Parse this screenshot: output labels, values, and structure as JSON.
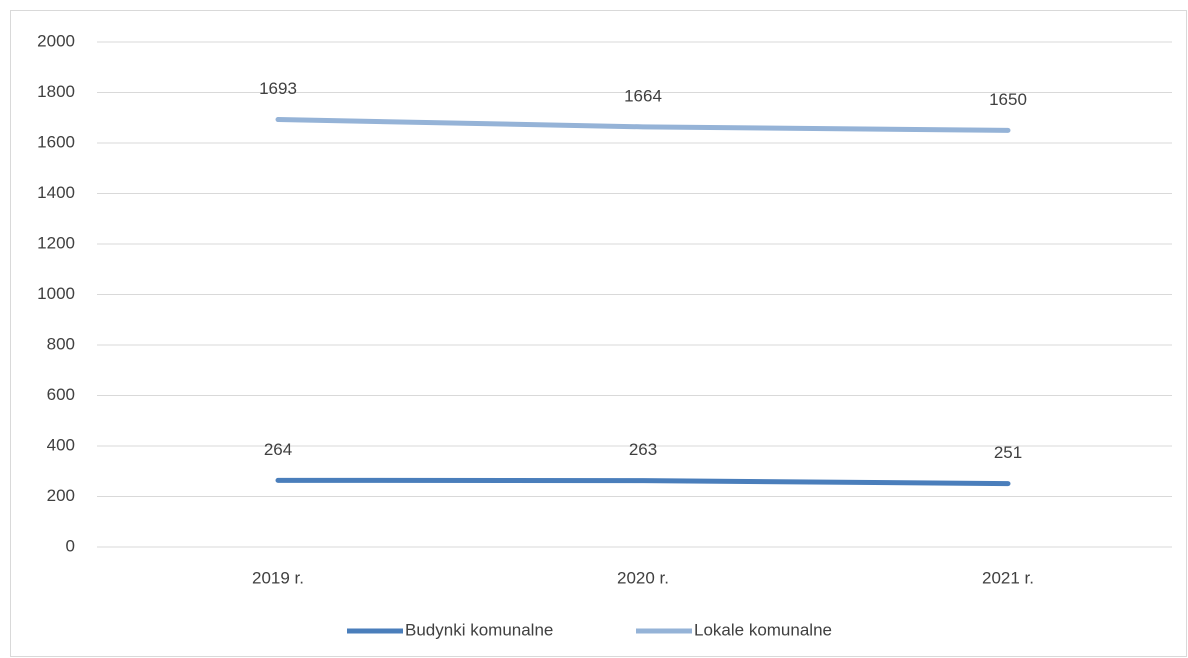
{
  "chart_data": {
    "type": "line",
    "categories": [
      "2019 r.",
      "2020 r.",
      "2021 r."
    ],
    "series": [
      {
        "name": "Budynki komunalne",
        "color": "#4a7ebb",
        "values": [
          264,
          263,
          251
        ]
      },
      {
        "name": "Lokale komunalne",
        "color": "#95b3d7",
        "values": [
          1693,
          1664,
          1650
        ]
      }
    ],
    "ylim": [
      0,
      2000
    ],
    "yticks": [
      0,
      200,
      400,
      600,
      800,
      1000,
      1200,
      1400,
      1600,
      1800,
      2000
    ],
    "grid": true,
    "legend": "bottom",
    "data_labels": true
  }
}
